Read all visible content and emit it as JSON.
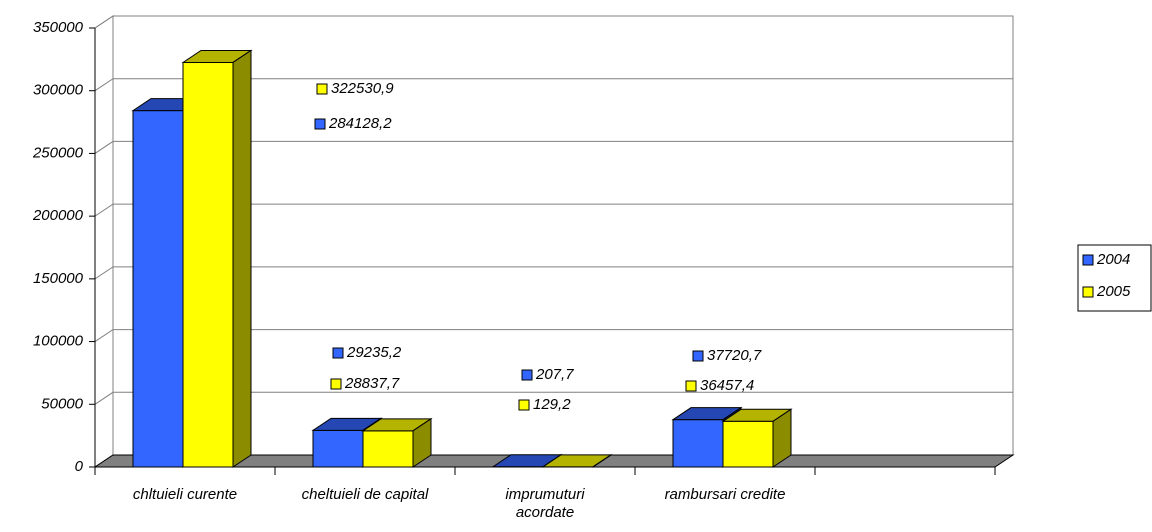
{
  "chart_data": {
    "type": "bar3d",
    "categories": [
      "chltuieli curente",
      "cheltuieli de capital",
      "imprumuturi acordate",
      "rambursari credite",
      null
    ],
    "series": [
      {
        "name": "2004",
        "color": "#3366ff",
        "values": [
          284128.2,
          29235.2,
          207.7,
          37720.7,
          null
        ],
        "value_labels": [
          "284128,2",
          "29235,2",
          "207,7",
          "37720,7",
          null
        ]
      },
      {
        "name": "2005",
        "color": "#ffff00",
        "values": [
          322530.9,
          28837.7,
          129.2,
          36457.4,
          null
        ],
        "value_labels": [
          "322530,9",
          "28837,7",
          "129,2",
          "36457,4",
          null
        ]
      }
    ],
    "ylim": [
      0,
      350000
    ],
    "yticks": [
      0,
      50000,
      100000,
      150000,
      200000,
      250000,
      300000,
      350000
    ],
    "grid": true,
    "legend": "right"
  }
}
